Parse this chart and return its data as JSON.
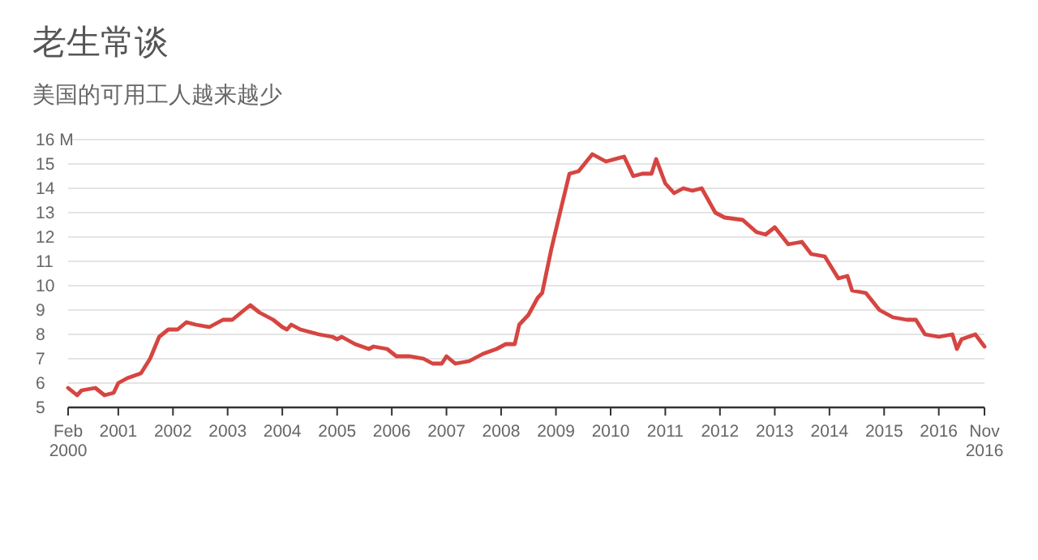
{
  "chart_data": {
    "type": "line",
    "title": "老生常谈",
    "subtitle": "美国的可用工人越来越少",
    "x": [
      "2000-02",
      "2000-04",
      "2000-05",
      "2000-08",
      "2000-10",
      "2000-12",
      "2001-01",
      "2001-03",
      "2001-06",
      "2001-08",
      "2001-10",
      "2001-12",
      "2002-02",
      "2002-04",
      "2002-06",
      "2002-09",
      "2002-12",
      "2003-02",
      "2003-06",
      "2003-08",
      "2003-11",
      "2004-01",
      "2004-02",
      "2004-03",
      "2004-05",
      "2004-09",
      "2004-12",
      "2005-01",
      "2005-02",
      "2005-05",
      "2005-08",
      "2005-09",
      "2005-12",
      "2006-02",
      "2006-05",
      "2006-08",
      "2006-10",
      "2006-12",
      "2007-01",
      "2007-03",
      "2007-06",
      "2007-09",
      "2007-12",
      "2008-02",
      "2008-04",
      "2008-05",
      "2008-07",
      "2008-09",
      "2008-10",
      "2008-12",
      "2009-02",
      "2009-04",
      "2009-06",
      "2009-09",
      "2009-12",
      "2010-04",
      "2010-06",
      "2010-08",
      "2010-10",
      "2010-11",
      "2011-01",
      "2011-03",
      "2011-05",
      "2011-07",
      "2011-09",
      "2011-12",
      "2012-02",
      "2012-06",
      "2012-09",
      "2012-11",
      "2013-01",
      "2013-04",
      "2013-07",
      "2013-09",
      "2013-12",
      "2014-03",
      "2014-05",
      "2014-06",
      "2014-09",
      "2014-12",
      "2015-03",
      "2015-06",
      "2015-08",
      "2015-10",
      "2016-01",
      "2016-04",
      "2016-05",
      "2016-06",
      "2016-09",
      "2016-11"
    ],
    "series": [
      {
        "color": "#d64541",
        "values": [
          5.8,
          5.5,
          5.7,
          5.8,
          5.5,
          5.6,
          6.0,
          6.2,
          6.4,
          7.0,
          7.9,
          8.2,
          8.2,
          8.5,
          8.4,
          8.3,
          8.6,
          8.6,
          9.2,
          8.9,
          8.6,
          8.3,
          8.2,
          8.4,
          8.2,
          8.0,
          7.9,
          7.8,
          7.9,
          7.6,
          7.4,
          7.5,
          7.4,
          7.1,
          7.1,
          7.0,
          6.8,
          6.8,
          7.1,
          6.8,
          6.9,
          7.2,
          7.4,
          7.6,
          7.6,
          8.4,
          8.8,
          9.5,
          9.7,
          11.5,
          13.1,
          14.6,
          14.7,
          15.4,
          15.1,
          15.3,
          14.5,
          14.6,
          14.6,
          15.2,
          14.2,
          13.8,
          14.0,
          13.9,
          14.0,
          13.0,
          12.8,
          12.7,
          12.2,
          12.1,
          12.4,
          11.7,
          11.8,
          11.3,
          11.2,
          10.3,
          10.4,
          9.8,
          9.7,
          9.0,
          8.7,
          8.6,
          8.6,
          8.0,
          7.9,
          8.0,
          7.4,
          7.8,
          8.0,
          7.5
        ]
      }
    ],
    "xlim": [
      "2000-02",
      "2016-11"
    ],
    "xticks": [
      {
        "value": "2000-02",
        "label": "Feb\n2000"
      },
      {
        "value": "2001",
        "label": "2001"
      },
      {
        "value": "2002",
        "label": "2002"
      },
      {
        "value": "2003",
        "label": "2003"
      },
      {
        "value": "2004",
        "label": "2004"
      },
      {
        "value": "2005",
        "label": "2005"
      },
      {
        "value": "2006",
        "label": "2006"
      },
      {
        "value": "2007",
        "label": "2007"
      },
      {
        "value": "2008",
        "label": "2008"
      },
      {
        "value": "2009",
        "label": "2009"
      },
      {
        "value": "2010",
        "label": "2010"
      },
      {
        "value": "2011",
        "label": "2011"
      },
      {
        "value": "2012",
        "label": "2012"
      },
      {
        "value": "2013",
        "label": "2013"
      },
      {
        "value": "2014",
        "label": "2014"
      },
      {
        "value": "2015",
        "label": "2015"
      },
      {
        "value": "2016",
        "label": "2016"
      },
      {
        "value": "2016-11",
        "label": "Nov\n2016"
      }
    ],
    "ylim": [
      5,
      16
    ],
    "yticks": [
      5,
      6,
      7,
      8,
      9,
      10,
      11,
      12,
      13,
      14,
      15,
      {
        "value": 16,
        "label": "16 M"
      }
    ],
    "grid": "y",
    "marker": "none",
    "line_style": "solid"
  }
}
